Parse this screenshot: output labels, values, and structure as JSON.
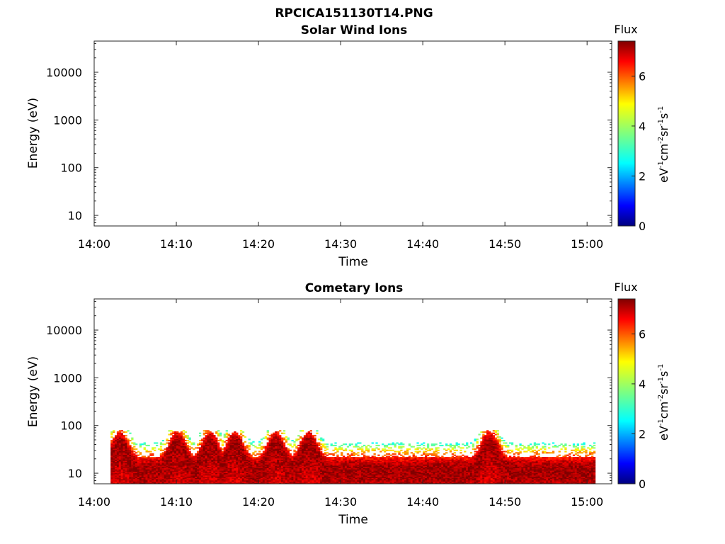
{
  "figure": {
    "title": "RPCICA151130T14.PNG"
  },
  "chart_data": [
    {
      "type": "heatmap",
      "title": "Solar Wind Ions",
      "xlabel": "Time",
      "ylabel": "Energy (eV)",
      "x_ticks": [
        "14:00",
        "14:10",
        "14:20",
        "14:30",
        "14:40",
        "14:50",
        "15:00"
      ],
      "x_range_minutes": [
        0,
        63
      ],
      "y_scale": "log",
      "y_ticks": [
        "10",
        "100",
        "1000",
        "10000"
      ],
      "ylim": [
        6,
        45000
      ],
      "colorbar": {
        "title": "Flux",
        "label": "eV-1cm-2sr-1s-1",
        "ticks": [
          "0",
          "2",
          "4",
          "6"
        ],
        "range": [
          0,
          7.4
        ],
        "colormap": "jet"
      },
      "data": "empty — no flux shown"
    },
    {
      "type": "heatmap",
      "title": "Cometary Ions",
      "xlabel": "Time",
      "ylabel": "Energy (eV)",
      "x_ticks": [
        "14:00",
        "14:10",
        "14:20",
        "14:30",
        "14:40",
        "14:50",
        "15:00"
      ],
      "x_range_minutes": [
        0,
        63
      ],
      "y_scale": "log",
      "y_ticks": [
        "10",
        "100",
        "1000",
        "10000"
      ],
      "ylim": [
        6,
        45000
      ],
      "colorbar": {
        "title": "Flux",
        "label": "eV-1cm-2sr-1s-1",
        "ticks": [
          "0",
          "2",
          "4",
          "6"
        ],
        "range": [
          0,
          7.4
        ],
        "colormap": "jet"
      },
      "data_time_range": [
        "14:02",
        "15:01"
      ],
      "upper_energy_cutoff_eV": 80,
      "core_energy_eV": [
        7,
        30
      ],
      "peak_flux": 7.2,
      "peaks": [
        {
          "time": "14:03",
          "energy_eV": 12
        },
        {
          "time": "14:10",
          "energy_eV": 40
        },
        {
          "time": "14:14",
          "energy_eV": 20
        },
        {
          "time": "14:17",
          "energy_eV": 35
        },
        {
          "time": "14:22",
          "energy_eV": 45
        },
        {
          "time": "14:26",
          "energy_eV": 30
        },
        {
          "time": "14:48",
          "energy_eV": 20
        }
      ]
    }
  ]
}
